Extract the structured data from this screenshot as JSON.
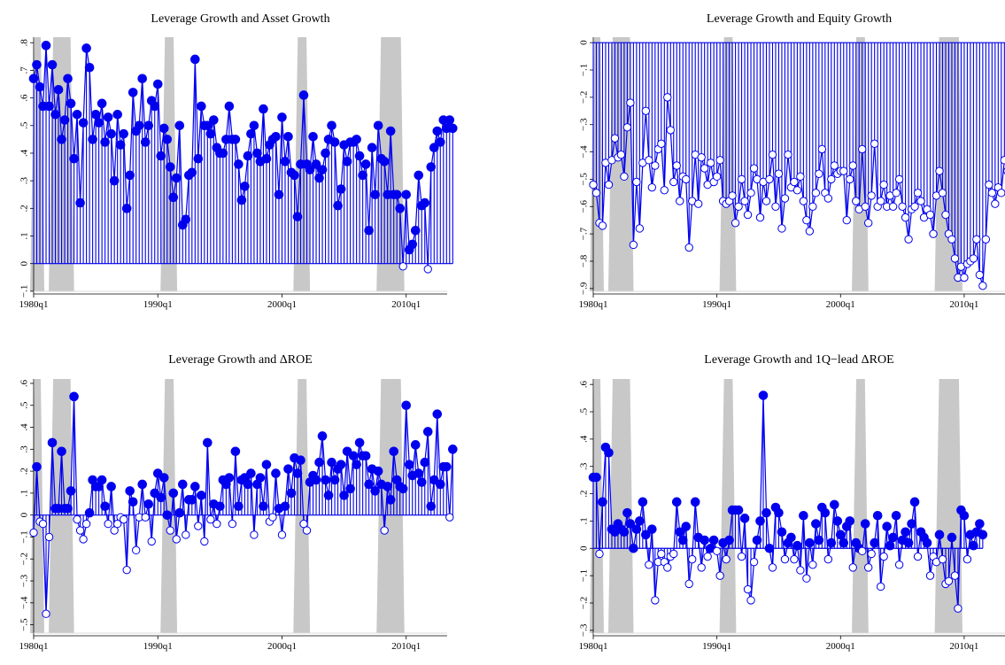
{
  "colors": {
    "series": "#0000ee",
    "recession": "#c8c8c8",
    "axis": "#000000",
    "background": "#ffffff"
  },
  "chart_data": [
    {
      "type": "line",
      "title": "Leverage Growth and Asset Growth",
      "xlabel": "",
      "ylabel": "",
      "x_ticks": [
        "1980q1",
        "1990q1",
        "2000q1",
        "2010q1"
      ],
      "y_ticks": [
        -0.1,
        0,
        0.1,
        0.2,
        0.3,
        0.4,
        0.5,
        0.6,
        0.7,
        0.8
      ],
      "y_tick_labels": [
        "−.1",
        "0",
        ".1",
        ".2",
        ".3",
        ".4",
        ".5",
        ".6",
        ".7",
        ".8"
      ],
      "xlim": [
        1980.0,
        2013.3
      ],
      "ylim": [
        -0.11,
        0.82
      ],
      "baseline": 0,
      "recessions": [
        [
          1980.0,
          1980.5
        ],
        [
          1981.5,
          1982.9
        ],
        [
          1990.5,
          1991.2
        ],
        [
          2001.2,
          2001.9
        ],
        [
          2007.9,
          2009.5
        ]
      ],
      "filled_points": "correlation >= 0 (filled), < 0 (hollow)",
      "grid": false,
      "legend": "none",
      "series": [
        {
          "x_start": 1980.0,
          "x_step": 0.25,
          "values": [
            0.67,
            0.72,
            0.64,
            0.57,
            0.79,
            0.57,
            0.72,
            0.54,
            0.63,
            0.45,
            0.52,
            0.67,
            0.58,
            0.38,
            0.54,
            0.22,
            0.51,
            0.78,
            0.71,
            0.45,
            0.54,
            0.51,
            0.58,
            0.44,
            0.53,
            0.47,
            0.3,
            0.54,
            0.43,
            0.47,
            0.2,
            0.32,
            0.62,
            0.48,
            0.5,
            0.67,
            0.44,
            0.5,
            0.59,
            0.57,
            0.65,
            0.39,
            0.49,
            0.45,
            0.35,
            0.24,
            0.31,
            0.5,
            0.14,
            0.16,
            0.32,
            0.33,
            0.74,
            0.38,
            0.57,
            0.5,
            0.5,
            0.47,
            0.52,
            0.42,
            0.4,
            0.4,
            0.45,
            0.57,
            0.45,
            0.45,
            0.36,
            0.23,
            0.28,
            0.39,
            0.47,
            0.5,
            0.4,
            0.37,
            0.56,
            0.38,
            0.43,
            0.45,
            0.46,
            0.25,
            0.53,
            0.37,
            0.46,
            0.33,
            0.32,
            0.17,
            0.36,
            0.61,
            0.36,
            0.34,
            0.46,
            0.36,
            0.31,
            0.34,
            0.4,
            0.45,
            0.5,
            0.44,
            0.21,
            0.27,
            0.43,
            0.37,
            0.44,
            0.44,
            0.45,
            0.39,
            0.32,
            0.36,
            0.12,
            0.42,
            0.25,
            0.5,
            0.38,
            0.37,
            0.25,
            0.48,
            0.25,
            0.25,
            0.2,
            -0.01,
            0.25,
            0.05,
            0.07,
            0.12,
            0.32,
            0.21,
            0.22,
            -0.02,
            0.35,
            0.42,
            0.48,
            0.44,
            0.52,
            0.49,
            0.52,
            0.49
          ]
        }
      ]
    },
    {
      "type": "line",
      "title": "Leverage Growth and Equity Growth",
      "xlabel": "",
      "ylabel": "",
      "x_ticks": [
        "1980q1",
        "1990q1",
        "2000q1",
        "2010q1"
      ],
      "y_ticks": [
        0,
        -0.1,
        -0.2,
        -0.3,
        -0.4,
        -0.5,
        -0.6,
        -0.7,
        -0.8,
        -0.9
      ],
      "y_tick_labels": [
        "0",
        "−.1",
        "−.2",
        "−.3",
        "−.4",
        "−.5",
        "−.6",
        "−.7",
        "−.8",
        "−.9"
      ],
      "xlim": [
        1980.0,
        2013.3
      ],
      "ylim": [
        -0.92,
        0.02
      ],
      "baseline": 0,
      "recessions": [
        [
          1980.0,
          1980.5
        ],
        [
          1981.5,
          1982.9
        ],
        [
          1990.5,
          1991.2
        ],
        [
          2001.2,
          2001.9
        ],
        [
          2007.9,
          2009.5
        ]
      ],
      "grid": false,
      "legend": "none",
      "series": [
        {
          "x_start": 1980.0,
          "x_step": 0.25,
          "values": [
            -0.52,
            -0.55,
            -0.66,
            -0.67,
            -0.44,
            -0.52,
            -0.43,
            -0.35,
            -0.42,
            -0.41,
            -0.49,
            -0.31,
            -0.22,
            -0.74,
            -0.51,
            -0.68,
            -0.44,
            -0.25,
            -0.43,
            -0.53,
            -0.45,
            -0.39,
            -0.37,
            -0.54,
            -0.2,
            -0.32,
            -0.51,
            -0.45,
            -0.58,
            -0.49,
            -0.5,
            -0.75,
            -0.58,
            -0.41,
            -0.59,
            -0.42,
            -0.46,
            -0.52,
            -0.44,
            -0.51,
            -0.49,
            -0.43,
            -0.58,
            -0.59,
            -0.58,
            -0.56,
            -0.66,
            -0.6,
            -0.5,
            -0.58,
            -0.63,
            -0.55,
            -0.46,
            -0.5,
            -0.64,
            -0.51,
            -0.58,
            -0.5,
            -0.41,
            -0.6,
            -0.48,
            -0.68,
            -0.57,
            -0.41,
            -0.53,
            -0.51,
            -0.54,
            -0.49,
            -0.58,
            -0.65,
            -0.69,
            -0.6,
            -0.55,
            -0.48,
            -0.39,
            -0.55,
            -0.57,
            -0.5,
            -0.45,
            -0.48,
            -0.47,
            -0.47,
            -0.65,
            -0.5,
            -0.45,
            -0.58,
            -0.61,
            -0.39,
            -0.6,
            -0.66,
            -0.56,
            -0.37,
            -0.6,
            -0.58,
            -0.52,
            -0.6,
            -0.56,
            -0.6,
            -0.55,
            -0.5,
            -0.6,
            -0.64,
            -0.72,
            -0.61,
            -0.6,
            -0.55,
            -0.58,
            -0.64,
            -0.61,
            -0.63,
            -0.7,
            -0.56,
            -0.47,
            -0.55,
            -0.63,
            -0.7,
            -0.72,
            -0.79,
            -0.86,
            -0.82,
            -0.86,
            -0.81,
            -0.8,
            -0.79,
            -0.72,
            -0.85,
            -0.89,
            -0.72,
            -0.52,
            -0.55,
            -0.59,
            -0.53,
            -0.55,
            -0.43,
            -0.47,
            -0.5
          ]
        }
      ]
    },
    {
      "type": "line",
      "title": "Leverage Growth and ΔROE",
      "xlabel": "",
      "ylabel": "",
      "x_ticks": [
        "1980q1",
        "1990q1",
        "2000q1",
        "2010q1"
      ],
      "y_ticks": [
        -0.5,
        -0.4,
        -0.3,
        -0.2,
        -0.1,
        0,
        0.1,
        0.2,
        0.3,
        0.4,
        0.5,
        0.6
      ],
      "y_tick_labels": [
        "−.5",
        "−.4",
        "−.3",
        "−.2",
        "−.1",
        "0",
        ".1",
        ".2",
        ".3",
        ".4",
        ".5",
        ".6"
      ],
      "xlim": [
        1980.0,
        2013.3
      ],
      "ylim": [
        -0.55,
        0.62
      ],
      "baseline": 0,
      "recessions": [
        [
          1980.0,
          1980.5
        ],
        [
          1981.5,
          1982.9
        ],
        [
          1990.5,
          1991.2
        ],
        [
          2001.2,
          2001.9
        ],
        [
          2007.9,
          2009.5
        ]
      ],
      "grid": false,
      "legend": "none",
      "series": [
        {
          "x_start": 1980.0,
          "x_step": 0.25,
          "values": [
            -0.08,
            0.22,
            -0.03,
            -0.04,
            -0.45,
            -0.1,
            0.33,
            0.03,
            0.03,
            0.29,
            0.03,
            0.03,
            0.11,
            0.54,
            -0.02,
            -0.07,
            -0.11,
            -0.04,
            0.01,
            0.16,
            0.13,
            0.13,
            0.16,
            0.04,
            -0.04,
            0.13,
            -0.07,
            -0.04,
            -0.01,
            -0.02,
            -0.25,
            0.11,
            0.06,
            -0.16,
            -0.01,
            0.14,
            -0.01,
            0.05,
            -0.12,
            0.1,
            0.19,
            0.08,
            0.17,
            0.0,
            -0.07,
            0.1,
            -0.11,
            0.01,
            0.14,
            -0.09,
            0.07,
            0.07,
            0.13,
            -0.05,
            0.09,
            -0.12,
            0.33,
            -0.02,
            0.05,
            -0.04,
            0.04,
            0.16,
            0.14,
            0.17,
            -0.04,
            0.29,
            0.04,
            0.16,
            0.17,
            0.14,
            0.19,
            -0.09,
            0.14,
            0.17,
            0.04,
            0.23,
            -0.03,
            -0.01,
            0.19,
            0.03,
            -0.09,
            0.04,
            0.21,
            0.1,
            0.26,
            0.19,
            0.25,
            -0.04,
            -0.07,
            0.15,
            0.18,
            0.16,
            0.24,
            0.36,
            0.16,
            0.09,
            0.24,
            0.16,
            0.21,
            0.23,
            0.09,
            0.29,
            0.12,
            0.27,
            0.23,
            0.33,
            0.27,
            0.27,
            0.14,
            0.21,
            0.11,
            0.2,
            0.14,
            -0.07,
            0.13,
            0.07,
            0.29,
            0.16,
            0.13,
            0.12,
            0.5,
            0.23,
            0.18,
            0.32,
            0.19,
            0.15,
            0.24,
            0.38,
            0.04,
            0.16,
            0.46,
            0.14,
            0.22,
            0.22,
            -0.01,
            0.3
          ]
        }
      ]
    },
    {
      "type": "line",
      "title": "Leverage Growth and 1Q−lead ΔROE",
      "xlabel": "",
      "ylabel": "",
      "x_ticks": [
        "1980q1",
        "1990q1",
        "2000q1",
        "2010q1"
      ],
      "y_ticks": [
        -0.3,
        -0.2,
        -0.1,
        0,
        0.1,
        0.2,
        0.3,
        0.4,
        0.5,
        0.6
      ],
      "y_tick_labels": [
        "−.3",
        "−.2",
        "−.1",
        "0",
        ".1",
        ".2",
        ".3",
        ".4",
        ".5",
        ".6"
      ],
      "xlim": [
        1980.0,
        2013.3
      ],
      "ylim": [
        -0.32,
        0.62
      ],
      "baseline": 0,
      "recessions": [
        [
          1980.0,
          1980.5
        ],
        [
          1981.5,
          1982.9
        ],
        [
          1990.5,
          1991.2
        ],
        [
          2001.2,
          2001.9
        ],
        [
          2007.9,
          2009.5
        ]
      ],
      "grid": false,
      "legend": "none",
      "series": [
        {
          "x_start": 1980.0,
          "x_step": 0.25,
          "values": [
            0.26,
            0.26,
            -0.02,
            0.17,
            0.37,
            0.35,
            0.07,
            0.06,
            0.09,
            0.07,
            0.06,
            0.13,
            0.09,
            0.0,
            0.07,
            0.1,
            0.17,
            0.05,
            -0.06,
            0.07,
            -0.19,
            -0.05,
            -0.02,
            -0.05,
            -0.07,
            -0.03,
            -0.02,
            0.17,
            0.06,
            0.03,
            0.08,
            -0.13,
            -0.04,
            0.17,
            0.04,
            -0.07,
            0.03,
            -0.03,
            0.0,
            0.03,
            -0.01,
            -0.1,
            0.02,
            -0.04,
            0.03,
            0.14,
            0.14,
            0.14,
            -0.03,
            0.11,
            -0.15,
            -0.19,
            -0.05,
            0.03,
            0.1,
            0.56,
            0.13,
            0.0,
            -0.07,
            0.15,
            0.13,
            0.06,
            -0.04,
            0.02,
            0.04,
            -0.04,
            0.01,
            -0.08,
            0.12,
            -0.11,
            0.02,
            -0.06,
            0.09,
            0.03,
            0.15,
            0.13,
            -0.04,
            0.02,
            0.16,
            0.1,
            0.05,
            0.02,
            0.08,
            0.1,
            -0.07,
            0.02,
            0.0,
            -0.01,
            0.09,
            -0.07,
            -0.02,
            0.02,
            0.12,
            -0.14,
            -0.03,
            0.08,
            0.01,
            0.04,
            0.12,
            -0.06,
            0.03,
            0.06,
            0.02,
            0.09,
            0.17,
            -0.03,
            0.06,
            0.04,
            0.02,
            -0.1,
            -0.03,
            -0.05,
            0.05,
            -0.04,
            -0.13,
            -0.12,
            0.04,
            -0.1,
            -0.22,
            0.14,
            0.12,
            -0.04,
            0.05,
            0.01,
            0.06,
            0.09,
            0.05
          ]
        }
      ]
    }
  ]
}
